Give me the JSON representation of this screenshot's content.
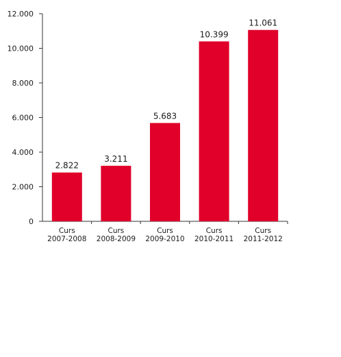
{
  "chart_data": {
    "type": "bar",
    "title": "",
    "xlabel": "",
    "ylabel": "",
    "categories": [
      [
        "Curs",
        "2007-2008"
      ],
      [
        "Curs",
        "2008-2009"
      ],
      [
        "Curs",
        "2009-2010"
      ],
      [
        "Curs",
        "2010-2011"
      ],
      [
        "Curs",
        "2011-2012"
      ]
    ],
    "values": [
      2822,
      3211,
      5683,
      10399,
      11061
    ],
    "data_labels": [
      "2.822",
      "3.211",
      "5.683",
      "10.399",
      "11.061"
    ],
    "y_ticks": [
      0,
      2000,
      4000,
      6000,
      8000,
      10000,
      12000
    ],
    "y_tick_labels": [
      "0",
      "2.000",
      "4.000",
      "6.000",
      "8.000",
      "10.000",
      "12.000"
    ],
    "ylim": [
      0,
      12000
    ],
    "grid": false,
    "legend": "none",
    "bar_color": "#e0002a",
    "axis_color": "#333333"
  }
}
